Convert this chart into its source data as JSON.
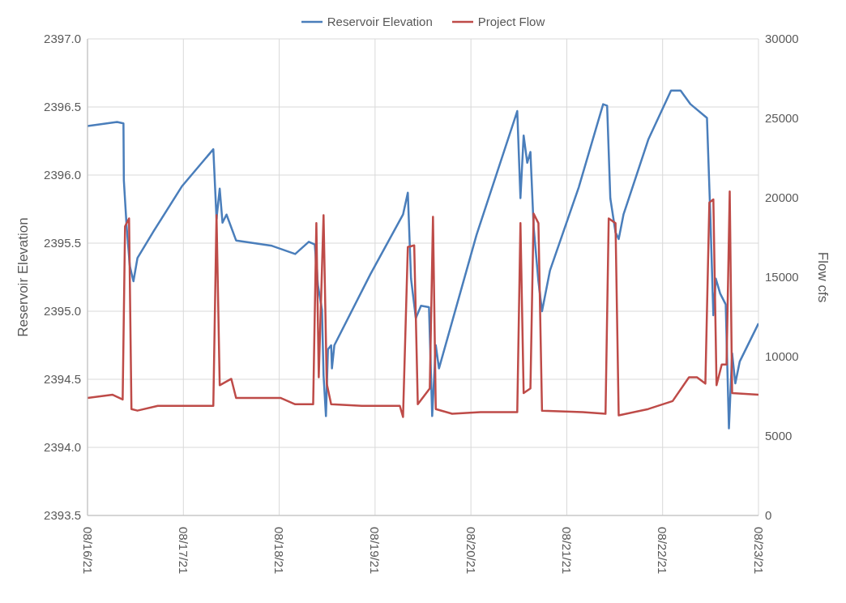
{
  "chart_data": {
    "type": "line",
    "ylabel": "Reservoir Elevation",
    "y2label": "Flow cfs",
    "legend": "top",
    "grid": true,
    "xticks": [
      {
        "value": "--08-16",
        "label": "08/16/21"
      },
      {
        "value": "--08-17",
        "label": "08/17/21"
      },
      {
        "value": "--08-18",
        "label": "08/18/21"
      },
      {
        "value": "--08-19",
        "label": "08/19/21"
      },
      {
        "value": "--08-20",
        "label": "08/20/21"
      },
      {
        "value": "--08-21",
        "label": "08/21/21"
      },
      {
        "value": "--08-22",
        "label": "08/22/21"
      },
      {
        "value": "--08-23",
        "label": "08/23/21"
      }
    ],
    "xlim": [
      "--08-16",
      "--08-23"
    ],
    "ylim": [
      2393.5,
      2397
    ],
    "yticks": [
      {
        "value": 2393.5,
        "label": "2393.5"
      },
      {
        "value": 2394,
        "label": "2394.0"
      },
      {
        "value": 2394.5,
        "label": "2394.5"
      },
      {
        "value": 2395,
        "label": "2395.0"
      },
      {
        "value": 2395.5,
        "label": "2395.5"
      },
      {
        "value": 2396,
        "label": "2396.0"
      },
      {
        "value": 2396.5,
        "label": "2396.5"
      },
      {
        "value": 2397,
        "label": "2397.0"
      }
    ],
    "y2lim": [
      0,
      30000
    ],
    "y2ticks": [
      0,
      5000,
      10000,
      15000,
      20000,
      25000,
      30000
    ],
    "series": [
      {
        "name": "Reservoir Elevation",
        "color": "#4a7ebb",
        "x": [
          "--08-16T00:00",
          "--08-16T07:24",
          "--08-16T09:00",
          "--08-16T09:06",
          "--08-16T09:48",
          "--08-16T10:36",
          "--08-16T11:30",
          "--08-16T12:30",
          "--08-16T16:36",
          "--08-16T23:42",
          "--08-17T07:30",
          "--08-17T08:18",
          "--08-17T09:06",
          "--08-17T09:48",
          "--08-17T10:48",
          "--08-17T13:12",
          "--08-17T22:12",
          "--08-18T04:00",
          "--08-18T07:24",
          "--08-18T08:54",
          "--08-18T09:42",
          "--08-18T10:42",
          "--08-18T11:06",
          "--08-18T11:42",
          "--08-18T12:12",
          "--08-18T13:00",
          "--08-18T13:12",
          "--08-18T13:48",
          "--08-18T22:48",
          "--08-19T07:00",
          "--08-19T08:12",
          "--08-19T09:00",
          "--08-19T10:12",
          "--08-19T11:30",
          "--08-19T13:30",
          "--08-19T14:18",
          "--08-19T15:12",
          "--08-19T16:00",
          "--08-20T01:24",
          "--08-20T11:36",
          "--08-20T12:24",
          "--08-20T13:12",
          "--08-20T14:06",
          "--08-20T14:54",
          "--08-20T15:42",
          "--08-20T16:54",
          "--08-20T17:48",
          "--08-20T19:48",
          "--08-21T03:00",
          "--08-21T09:06",
          "--08-21T10:06",
          "--08-21T10:54",
          "--08-21T12:12",
          "--08-21T13:00",
          "--08-21T14:12",
          "--08-21T20:24",
          "--08-22T02:06",
          "--08-22T04:30",
          "--08-22T07:00",
          "--08-22T11:06",
          "--08-22T11:54",
          "--08-22T12:42",
          "--08-22T13:18",
          "--08-22T14:24",
          "--08-22T15:48",
          "--08-22T16:36",
          "--08-22T17:24",
          "--08-22T18:12",
          "--08-22T19:18",
          "--08-23T00:00"
        ],
        "values": [
          2396.36,
          2396.39,
          2396.38,
          2395.96,
          2395.62,
          2395.33,
          2395.22,
          2395.39,
          2395.59,
          2395.92,
          2396.19,
          2395.68,
          2395.9,
          2395.65,
          2395.71,
          2395.52,
          2395.48,
          2395.42,
          2395.51,
          2395.49,
          2395.19,
          2395.01,
          2394.53,
          2394.23,
          2394.72,
          2394.75,
          2394.58,
          2394.75,
          2395.27,
          2395.71,
          2395.87,
          2395.24,
          2394.95,
          2395.04,
          2395.03,
          2394.23,
          2394.75,
          2394.58,
          2395.56,
          2396.47,
          2395.83,
          2396.29,
          2396.09,
          2396.17,
          2395.62,
          2395.22,
          2395.0,
          2395.3,
          2395.91,
          2396.52,
          2396.51,
          2395.83,
          2395.58,
          2395.53,
          2395.71,
          2396.26,
          2396.62,
          2396.62,
          2396.52,
          2396.42,
          2395.74,
          2394.97,
          2395.24,
          2395.13,
          2395.05,
          2394.14,
          2394.69,
          2394.47,
          2394.63,
          2394.91
        ]
      },
      {
        "name": "Project Flow",
        "color": "#be4b48",
        "axis": "y2",
        "x": [
          "--08-16T00:00",
          "--08-16T06:18",
          "--08-16T08:48",
          "--08-16T09:24",
          "--08-16T10:24",
          "--08-16T11:00",
          "--08-16T12:30",
          "--08-16T17:36",
          "--08-17T07:30",
          "--08-17T08:18",
          "--08-17T09:06",
          "--08-17T12:00",
          "--08-17T13:12",
          "--08-18T00:18",
          "--08-18T04:00",
          "--08-18T08:30",
          "--08-18T09:18",
          "--08-18T09:54",
          "--08-18T11:06",
          "--08-18T11:54",
          "--08-18T13:00",
          "--08-18T20:42",
          "--08-19T06:12",
          "--08-19T07:00",
          "--08-19T08:12",
          "--08-19T09:48",
          "--08-19T10:42",
          "--08-19T13:42",
          "--08-19T14:30",
          "--08-19T15:12",
          "--08-19T19:18",
          "--08-20T02:24",
          "--08-20T11:36",
          "--08-20T12:24",
          "--08-20T13:12",
          "--08-20T14:54",
          "--08-20T15:42",
          "--08-20T16:54",
          "--08-20T17:48",
          "--08-21T04:00",
          "--08-21T09:42",
          "--08-21T10:30",
          "--08-21T12:12",
          "--08-21T13:00",
          "--08-21T20:24",
          "--08-22T02:30",
          "--08-22T06:36",
          "--08-22T08:36",
          "--08-22T10:42",
          "--08-22T11:42",
          "--08-22T12:42",
          "--08-22T13:30",
          "--08-22T14:48",
          "--08-22T16:00",
          "--08-22T16:48",
          "--08-22T17:24",
          "--08-23T00:00"
        ],
        "values": [
          7400,
          7600,
          7300,
          18200,
          18700,
          6700,
          6600,
          6900,
          6900,
          18900,
          8200,
          8600,
          7400,
          7400,
          7000,
          7000,
          18400,
          8700,
          18900,
          8300,
          7000,
          6900,
          6900,
          6200,
          16900,
          17000,
          7000,
          8000,
          18800,
          6700,
          6400,
          6500,
          6500,
          18400,
          7700,
          8000,
          19000,
          18400,
          6600,
          6500,
          6400,
          18700,
          18400,
          6300,
          6700,
          7200,
          8700,
          8700,
          8300,
          19700,
          19900,
          8200,
          9500,
          9500,
          20400,
          7700,
          7600
        ]
      }
    ]
  }
}
